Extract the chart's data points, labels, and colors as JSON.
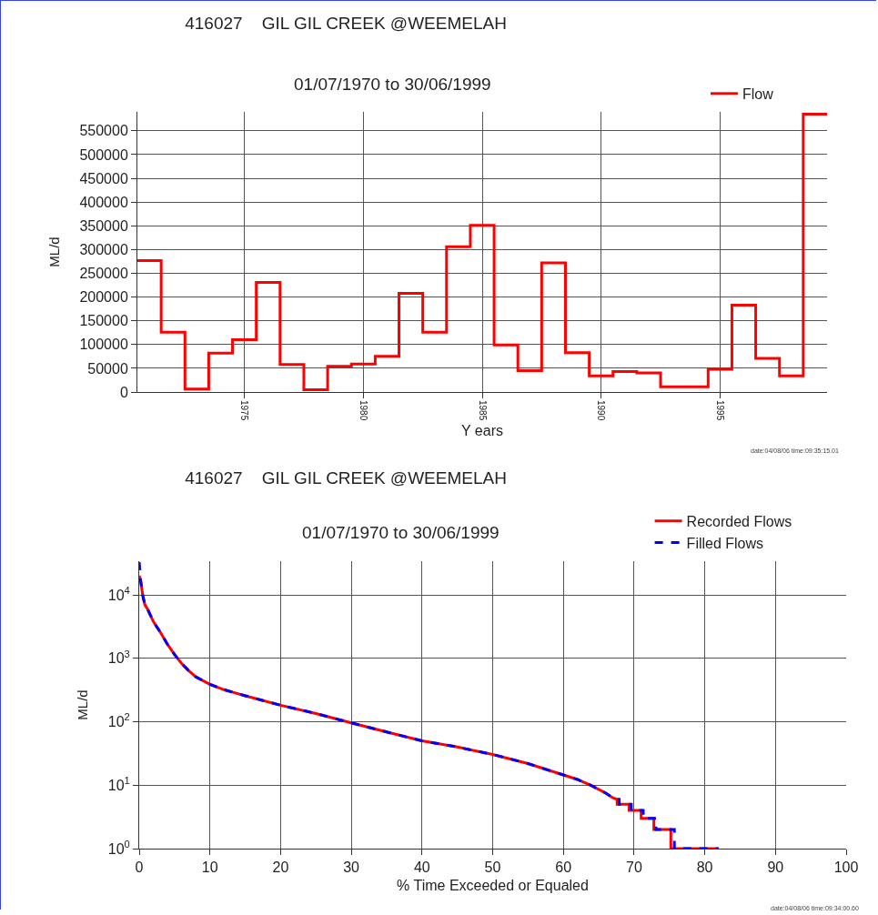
{
  "chart_data": [
    {
      "type": "step",
      "title": "416027    GIL GIL CREEK @WEEMELAH",
      "subtitle": "01/07/1970 to 30/06/1999",
      "xlabel": "Y ears",
      "ylabel": "ML/d",
      "x": [
        1970.5,
        1971.5,
        1972.5,
        1973.5,
        1974.5,
        1975.5,
        1976.5,
        1977.5,
        1978.5,
        1979.5,
        1980.5,
        1981.5,
        1982.5,
        1983.5,
        1984.5,
        1985.5,
        1986.5,
        1987.5,
        1988.5,
        1989.5,
        1990.5,
        1991.5,
        1992.5,
        1993.5,
        1994.5,
        1995.5,
        1996.5,
        1997.5,
        1998.5,
        1999.5
      ],
      "series": [
        {
          "name": "Flow",
          "color": "#ff0000",
          "values": [
            277000,
            126000,
            6000,
            82000,
            110000,
            231000,
            58000,
            5000,
            54000,
            59000,
            75000,
            208000,
            126000,
            306000,
            351000,
            99000,
            45000,
            272000,
            83000,
            34000,
            43000,
            40000,
            11000,
            11000,
            48000,
            183000,
            71000,
            34000,
            585000,
            585000
          ]
        }
      ],
      "xlim": [
        1970.5,
        1999.5
      ],
      "xticks": [
        1975,
        1980,
        1985,
        1990,
        1995
      ],
      "ylim": [
        0,
        590000
      ],
      "yticks": [
        0,
        50000,
        100000,
        150000,
        200000,
        250000,
        300000,
        350000,
        400000,
        450000,
        500000,
        550000
      ],
      "grid": true,
      "legend": "top right",
      "line_style": "solid",
      "marker": "none",
      "annotations": [
        "date:04/08/06 time:09:35:15.01"
      ]
    },
    {
      "type": "line",
      "title": "416027    GIL GIL CREEK @WEEMELAH",
      "subtitle": "01/07/1970 to 30/06/1999",
      "xlabel": "% Time Exceeded or Equaled",
      "ylabel": "ML/d",
      "series": [
        {
          "name": "Recorded Flows",
          "color": "#ff0000",
          "line_style": "solid",
          "x": [
            0,
            0.2,
            0.5,
            0.8,
            1.2,
            2,
            3,
            4,
            5,
            6,
            7,
            8,
            10,
            12,
            15,
            20,
            25,
            30,
            35,
            40,
            45,
            50,
            55,
            60,
            62,
            64,
            66,
            67,
            67.6,
            67.6,
            69.3,
            69.3,
            71.0,
            71.0,
            72.8,
            72.8,
            75.2,
            75.2,
            82
          ],
          "values": [
            20000,
            17000,
            9800,
            7000,
            5900,
            3800,
            2570,
            1660,
            1150,
            830,
            640,
            510,
            390,
            320,
            257,
            182,
            135,
            96,
            69,
            50,
            40,
            30.5,
            21.9,
            14.5,
            12.3,
            9.8,
            7.5,
            6.3,
            6,
            5,
            5,
            4,
            4,
            3,
            3,
            2,
            2,
            1,
            1
          ]
        },
        {
          "name": "Filled Flows",
          "color": "#0000ff",
          "line_style": "dashed",
          "x": [
            0,
            0.2,
            0.5,
            0.8,
            1.2,
            2,
            3,
            4,
            5,
            6,
            7,
            8,
            10,
            12,
            15,
            20,
            25,
            30,
            35,
            40,
            45,
            50,
            55,
            60,
            62,
            64,
            66,
            67,
            67.9,
            67.9,
            69.6,
            69.6,
            71.3,
            71.3,
            73.1,
            73.1,
            75.7,
            75.7,
            81.9
          ],
          "values": [
            33000,
            17000,
            9800,
            7000,
            5900,
            3800,
            2570,
            1660,
            1150,
            830,
            640,
            510,
            390,
            320,
            257,
            182,
            135,
            96,
            69,
            50,
            40,
            30.5,
            21.9,
            14.5,
            12.3,
            9.8,
            7.5,
            6.3,
            6,
            5,
            5,
            4,
            4,
            3,
            3,
            2,
            2,
            1,
            1
          ]
        }
      ],
      "log": "y",
      "xlim": [
        0,
        100
      ],
      "xticks": [
        0,
        10,
        20,
        30,
        40,
        50,
        60,
        70,
        80,
        90,
        100
      ],
      "ylim": [
        1,
        34000
      ],
      "yticks": [
        {
          "value": 1,
          "label": "10$^{0}$"
        },
        {
          "value": 10,
          "label": "10$^{1}$"
        },
        {
          "value": 100,
          "label": "10$^{2}$"
        },
        {
          "value": 1000,
          "label": "10$^{3}$"
        },
        {
          "value": 10000,
          "label": "10$^{4}$"
        }
      ],
      "grid": true,
      "legend": "top right",
      "marker": "none",
      "annotations": [
        "date:04/08/06 time:09:34:00.60"
      ]
    }
  ]
}
